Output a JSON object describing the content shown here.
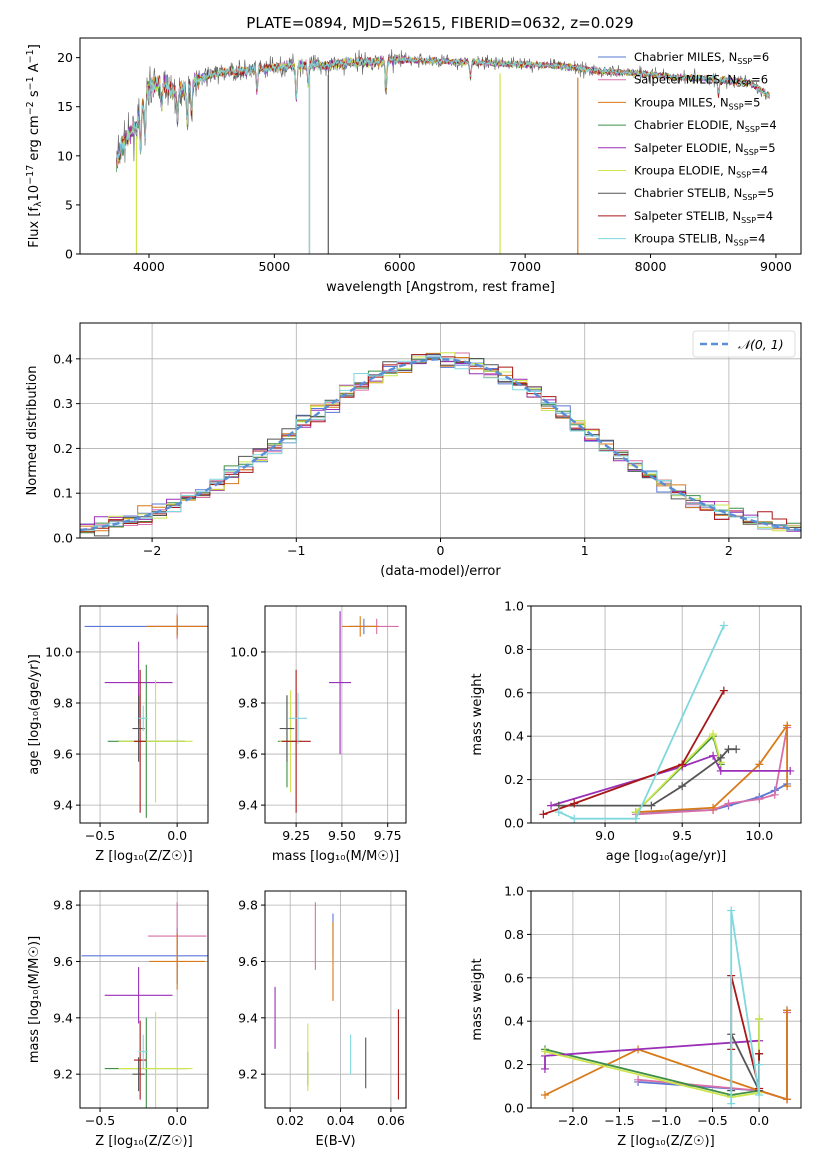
{
  "figure": {
    "title": "PLATE=0894, MJD=52615, FIBERID=0632, z=0.029"
  },
  "chart_data": [
    {
      "id": "spectrum",
      "type": "line",
      "xlabel": "wavelength [Angstrom, rest frame]",
      "ylabel": "Flux [f",
      "ylabel_parts": [
        "Flux [f",
        "λ",
        "10",
        "−17",
        " erg cm",
        "−2",
        " s",
        "−1",
        " A",
        "−1",
        "]"
      ],
      "xlim": [
        3450,
        9200
      ],
      "ylim": [
        0,
        22
      ],
      "xticks": [
        4000,
        5000,
        6000,
        7000,
        8000,
        9000
      ],
      "yticks": [
        0,
        5,
        10,
        15,
        20
      ],
      "grid": false,
      "legend_position": "upper-right",
      "continuum_x": [
        3740,
        3800,
        3900,
        3950,
        4000,
        4100,
        4200,
        4300,
        4400,
        4500,
        4600,
        4800,
        5000,
        5200,
        5400,
        5600,
        5800,
        6000,
        6200,
        6400,
        6600,
        6800,
        7000,
        7200,
        7400,
        7600,
        7800,
        8000,
        8200,
        8400,
        8600,
        8800,
        8950
      ],
      "continuum_y": [
        9.5,
        11.5,
        13.0,
        15.5,
        17.0,
        17.5,
        16.5,
        17.0,
        17.8,
        18.3,
        18.5,
        18.7,
        19.0,
        19.3,
        19.2,
        19.5,
        19.6,
        19.8,
        19.7,
        19.6,
        19.5,
        19.4,
        19.3,
        19.2,
        19.0,
        18.6,
        18.5,
        18.3,
        18.0,
        17.9,
        17.7,
        17.4,
        16.0
      ],
      "absorption_x": [
        3934,
        3969,
        4101,
        4227,
        4305,
        4340,
        4861,
        5175,
        5270,
        5890,
        6563,
        8542
      ],
      "absorption_depth": [
        4.0,
        4.0,
        2.5,
        3.0,
        3.5,
        3.0,
        2.0,
        3.5,
        2.0,
        3.0,
        1.5,
        1.5
      ],
      "drop_lines": [
        {
          "series": 5,
          "x": 3900
        },
        {
          "series": 6,
          "x": 5280
        },
        {
          "series": 8,
          "x": 5280
        },
        {
          "series": 6,
          "x": 5430
        },
        {
          "series": 5,
          "x": 6800
        },
        {
          "series": 2,
          "x": 7420
        }
      ],
      "series": [
        {
          "name": "Chabrier MILES",
          "nssp": "6",
          "color": "#5a78d6"
        },
        {
          "name": "Salpeter MILES",
          "nssp": "6",
          "color": "#d86fa8"
        },
        {
          "name": "Kroupa MILES",
          "nssp": "5",
          "color": "#d97a18"
        },
        {
          "name": "Chabrier ELODIE",
          "nssp": "4",
          "color": "#3f8f48"
        },
        {
          "name": "Salpeter ELODIE",
          "nssp": "5",
          "color": "#9b2fb8"
        },
        {
          "name": "Kroupa ELODIE",
          "nssp": "4",
          "color": "#cde64b"
        },
        {
          "name": "Chabrier STELIB",
          "nssp": "5",
          "color": "#555555"
        },
        {
          "name": "Salpeter STELIB",
          "nssp": "4",
          "color": "#a81818"
        },
        {
          "name": "Kroupa STELIB",
          "nssp": "4",
          "color": "#7fd8de"
        }
      ]
    },
    {
      "id": "residuals",
      "type": "histogram",
      "xlabel": "(data-model)/error",
      "ylabel": "Normed distribution",
      "xlim": [
        -2.5,
        2.5
      ],
      "ylim": [
        0,
        0.48
      ],
      "xticks": [
        -2,
        -1,
        0,
        1,
        2
      ],
      "yticks": [
        0.0,
        0.1,
        0.2,
        0.3,
        0.4
      ],
      "grid": true,
      "bin_width": 0.1,
      "reference_curve": {
        "label": "𝒩(0, 1)",
        "style": "dashed",
        "color": "#5a8fd6"
      },
      "legend_position": "upper-right"
    },
    {
      "id": "age-vs-Z",
      "type": "errorbar",
      "xlabel": "Z [log₁₀(Z/Z☉)]",
      "ylabel": "age  [log₁₀(age/yr)]",
      "xlim": [
        -0.63,
        0.2
      ],
      "ylim": [
        9.33,
        10.18
      ],
      "xticks": [
        -0.5,
        0.0
      ],
      "yticks": [
        9.4,
        9.6,
        9.8,
        10.0
      ],
      "grid": true,
      "points": [
        {
          "s": 0,
          "x": 0.0,
          "xerr": 0.6,
          "y": 10.1,
          "yerr": 0.03
        },
        {
          "s": 1,
          "x": 0.0,
          "xerr": 0.2,
          "y": 10.1,
          "yerr": 0.05
        },
        {
          "s": 2,
          "x": 0.0,
          "xerr": 0.2,
          "y": 10.1,
          "yerr": 0.04
        },
        {
          "s": 3,
          "x": -0.2,
          "xerr": 0.25,
          "y": 9.65,
          "yerr": 0.3
        },
        {
          "s": 4,
          "x": -0.25,
          "xerr": 0.22,
          "y": 9.88,
          "yerr": 0.16
        },
        {
          "s": 5,
          "x": -0.14,
          "xerr": 0.24,
          "y": 9.65,
          "yerr": 0.24
        },
        {
          "s": 6,
          "x": -0.25,
          "xerr": 0.04,
          "y": 9.7,
          "yerr": 0.13
        },
        {
          "s": 7,
          "x": -0.24,
          "xerr": 0.04,
          "y": 9.65,
          "yerr": 0.28
        },
        {
          "s": 8,
          "x": -0.22,
          "xerr": 0.03,
          "y": 9.74,
          "yerr": 0.05
        }
      ]
    },
    {
      "id": "age-vs-mass",
      "type": "errorbar",
      "xlabel": "mass [log₁₀(M/M☉)]",
      "ylabel": "",
      "xlim": [
        9.08,
        9.85
      ],
      "ylim": [
        9.33,
        10.18
      ],
      "xticks": [
        9.25,
        9.5,
        9.75
      ],
      "yticks": [
        9.4,
        9.6,
        9.8,
        10.0
      ],
      "grid": true,
      "points": [
        {
          "s": 0,
          "x": 9.62,
          "xerr": 0.08,
          "y": 10.1,
          "yerr": 0.03
        },
        {
          "s": 1,
          "x": 9.69,
          "xerr": 0.12,
          "y": 10.1,
          "yerr": 0.03
        },
        {
          "s": 2,
          "x": 9.6,
          "xerr": 0.1,
          "y": 10.1,
          "yerr": 0.04
        },
        {
          "s": 3,
          "x": 9.2,
          "xerr": 0.05,
          "y": 9.65,
          "yerr": 0.18
        },
        {
          "s": 4,
          "x": 9.49,
          "xerr": 0.06,
          "y": 9.88,
          "yerr": 0.28
        },
        {
          "s": 5,
          "x": 9.22,
          "xerr": 0.06,
          "y": 9.65,
          "yerr": 0.2
        },
        {
          "s": 6,
          "x": 9.2,
          "xerr": 0.04,
          "y": 9.7,
          "yerr": 0.13
        },
        {
          "s": 7,
          "x": 9.25,
          "xerr": 0.08,
          "y": 9.65,
          "yerr": 0.28
        },
        {
          "s": 8,
          "x": 9.26,
          "xerr": 0.05,
          "y": 9.74,
          "yerr": 0.1
        }
      ]
    },
    {
      "id": "weight-vs-age",
      "type": "line",
      "xlabel": "age  [log₁₀(age/yr)]",
      "ylabel": "mass weight",
      "xlim": [
        8.52,
        10.27
      ],
      "ylim": [
        0,
        1.0
      ],
      "xticks": [
        9.0,
        9.5,
        10.0
      ],
      "yticks": [
        0.0,
        0.2,
        0.4,
        0.6,
        0.8,
        1.0
      ],
      "grid": true,
      "series": [
        {
          "s": 0,
          "x": [
            9.2,
            9.7,
            9.8,
            10.0,
            10.1,
            10.18
          ],
          "y": [
            0.05,
            0.06,
            0.08,
            0.12,
            0.15,
            0.18
          ]
        },
        {
          "s": 1,
          "x": [
            9.2,
            9.7,
            9.8,
            10.0,
            10.1,
            10.18
          ],
          "y": [
            0.04,
            0.06,
            0.09,
            0.11,
            0.13,
            0.44
          ]
        },
        {
          "s": 2,
          "x": [
            9.2,
            9.7,
            10.0,
            10.18,
            10.18
          ],
          "y": [
            0.05,
            0.07,
            0.27,
            0.45,
            0.17
          ]
        },
        {
          "s": 3,
          "x": [
            9.2,
            9.7,
            9.75
          ],
          "y": [
            0.05,
            0.4,
            0.27
          ]
        },
        {
          "s": 4,
          "x": [
            8.65,
            9.5,
            9.7,
            9.75,
            10.2
          ],
          "y": [
            0.08,
            0.26,
            0.31,
            0.24,
            0.24
          ]
        },
        {
          "s": 5,
          "x": [
            9.2,
            9.7,
            9.75
          ],
          "y": [
            0.05,
            0.41,
            0.28
          ]
        },
        {
          "s": 6,
          "x": [
            8.7,
            9.3,
            9.5,
            9.75,
            9.8,
            9.85
          ],
          "y": [
            0.08,
            0.08,
            0.17,
            0.3,
            0.34,
            0.34
          ]
        },
        {
          "s": 7,
          "x": [
            8.6,
            8.8,
            9.5,
            9.77
          ],
          "y": [
            0.04,
            0.09,
            0.27,
            0.61
          ]
        },
        {
          "s": 8,
          "x": [
            8.7,
            8.8,
            9.2,
            9.77
          ],
          "y": [
            0.05,
            0.02,
            0.02,
            0.91
          ]
        }
      ]
    },
    {
      "id": "mass-vs-Z",
      "type": "errorbar",
      "xlabel": "Z [log₁₀(Z/Z☉)]",
      "ylabel": "mass [log₁₀(M/M☉)]",
      "xlim": [
        -0.63,
        0.2
      ],
      "ylim": [
        9.08,
        9.85
      ],
      "xticks": [
        -0.5,
        0.0
      ],
      "yticks": [
        9.2,
        9.4,
        9.6,
        9.8
      ],
      "grid": true,
      "points": [
        {
          "s": 0,
          "x": 0.0,
          "xerr": 0.62,
          "y": 9.62,
          "yerr": 0.1
        },
        {
          "s": 1,
          "x": 0.0,
          "xerr": 0.19,
          "y": 9.69,
          "yerr": 0.12
        },
        {
          "s": 2,
          "x": 0.0,
          "xerr": 0.18,
          "y": 9.6,
          "yerr": 0.1
        },
        {
          "s": 3,
          "x": -0.2,
          "xerr": 0.27,
          "y": 9.22,
          "yerr": 0.18
        },
        {
          "s": 4,
          "x": -0.25,
          "xerr": 0.22,
          "y": 9.48,
          "yerr": 0.1
        },
        {
          "s": 5,
          "x": -0.14,
          "xerr": 0.24,
          "y": 9.22,
          "yerr": 0.2
        },
        {
          "s": 6,
          "x": -0.25,
          "xerr": 0.04,
          "y": 9.2,
          "yerr": 0.06
        },
        {
          "s": 7,
          "x": -0.24,
          "xerr": 0.04,
          "y": 9.25,
          "yerr": 0.14
        },
        {
          "s": 8,
          "x": -0.22,
          "xerr": 0.03,
          "y": 9.28,
          "yerr": 0.06
        }
      ]
    },
    {
      "id": "mass-vs-ebv",
      "type": "errorbar",
      "xlabel": "E(B-V)",
      "ylabel": "",
      "xlim": [
        0.01,
        0.066
      ],
      "ylim": [
        9.08,
        9.85
      ],
      "xticks": [
        0.02,
        0.04,
        0.06
      ],
      "yticks": [
        9.2,
        9.4,
        9.6,
        9.8
      ],
      "grid": true,
      "points": [
        {
          "s": 0,
          "x": 0.037,
          "xerr": 0,
          "y": 9.69,
          "yerr": 0.08
        },
        {
          "s": 1,
          "x": 0.03,
          "xerr": 0,
          "y": 9.69,
          "yerr": 0.12
        },
        {
          "s": 2,
          "x": 0.037,
          "xerr": 0,
          "y": 9.6,
          "yerr": 0.14
        },
        {
          "s": 3,
          "x": 0.027,
          "xerr": 0,
          "y": 9.22,
          "yerr": 0.06
        },
        {
          "s": 4,
          "x": 0.014,
          "xerr": 0,
          "y": 9.4,
          "yerr": 0.11
        },
        {
          "s": 5,
          "x": 0.027,
          "xerr": 0,
          "y": 9.26,
          "yerr": 0.12
        },
        {
          "s": 6,
          "x": 0.05,
          "xerr": 0,
          "y": 9.24,
          "yerr": 0.09
        },
        {
          "s": 7,
          "x": 0.063,
          "xerr": 0,
          "y": 9.27,
          "yerr": 0.16
        },
        {
          "s": 8,
          "x": 0.044,
          "xerr": 0,
          "y": 9.27,
          "yerr": 0.07
        }
      ]
    },
    {
      "id": "weight-vs-Z",
      "type": "line",
      "xlabel": "Z [log₁₀(Z/Z☉)]",
      "ylabel": "mass weight",
      "xlim": [
        -2.45,
        0.45
      ],
      "ylim": [
        0,
        1.0
      ],
      "xticks": [
        -2.0,
        -1.5,
        -1.0,
        -0.5,
        0.0
      ],
      "yticks": [
        0.0,
        0.2,
        0.4,
        0.6,
        0.8,
        1.0
      ],
      "grid": true,
      "series": [
        {
          "s": 0,
          "x": [
            -1.3,
            0.0,
            0.3,
            0.3
          ],
          "y": [
            0.12,
            0.08,
            0.04,
            0.45
          ]
        },
        {
          "s": 1,
          "x": [
            -1.3,
            0.0,
            0.3,
            0.3
          ],
          "y": [
            0.13,
            0.08,
            0.04,
            0.44
          ]
        },
        {
          "s": 2,
          "x": [
            -2.3,
            -1.3,
            0.0,
            0.3,
            0.3
          ],
          "y": [
            0.06,
            0.27,
            0.08,
            0.04,
            0.45
          ]
        },
        {
          "s": 3,
          "x": [
            -2.3,
            -0.3,
            0.0,
            0.0
          ],
          "y": [
            0.27,
            0.06,
            0.08,
            0.41
          ]
        },
        {
          "s": 4,
          "x": [
            -2.3,
            -2.3,
            0.0
          ],
          "y": [
            0.18,
            0.24,
            0.31
          ]
        },
        {
          "s": 5,
          "x": [
            -2.3,
            -0.3,
            0.0,
            0.0
          ],
          "y": [
            0.26,
            0.05,
            0.07,
            0.41
          ]
        },
        {
          "s": 6,
          "x": [
            -0.3,
            -0.3,
            0.0,
            0.0
          ],
          "y": [
            0.08,
            0.34,
            0.08,
            0.25
          ]
        },
        {
          "s": 7,
          "x": [
            -0.3,
            -0.3,
            0.0,
            0.0
          ],
          "y": [
            0.27,
            0.61,
            0.09,
            0.25
          ]
        },
        {
          "s": 8,
          "x": [
            -0.3,
            -0.3,
            0.0,
            0.0
          ],
          "y": [
            0.02,
            0.91,
            0.06,
            0.2
          ]
        }
      ]
    }
  ]
}
